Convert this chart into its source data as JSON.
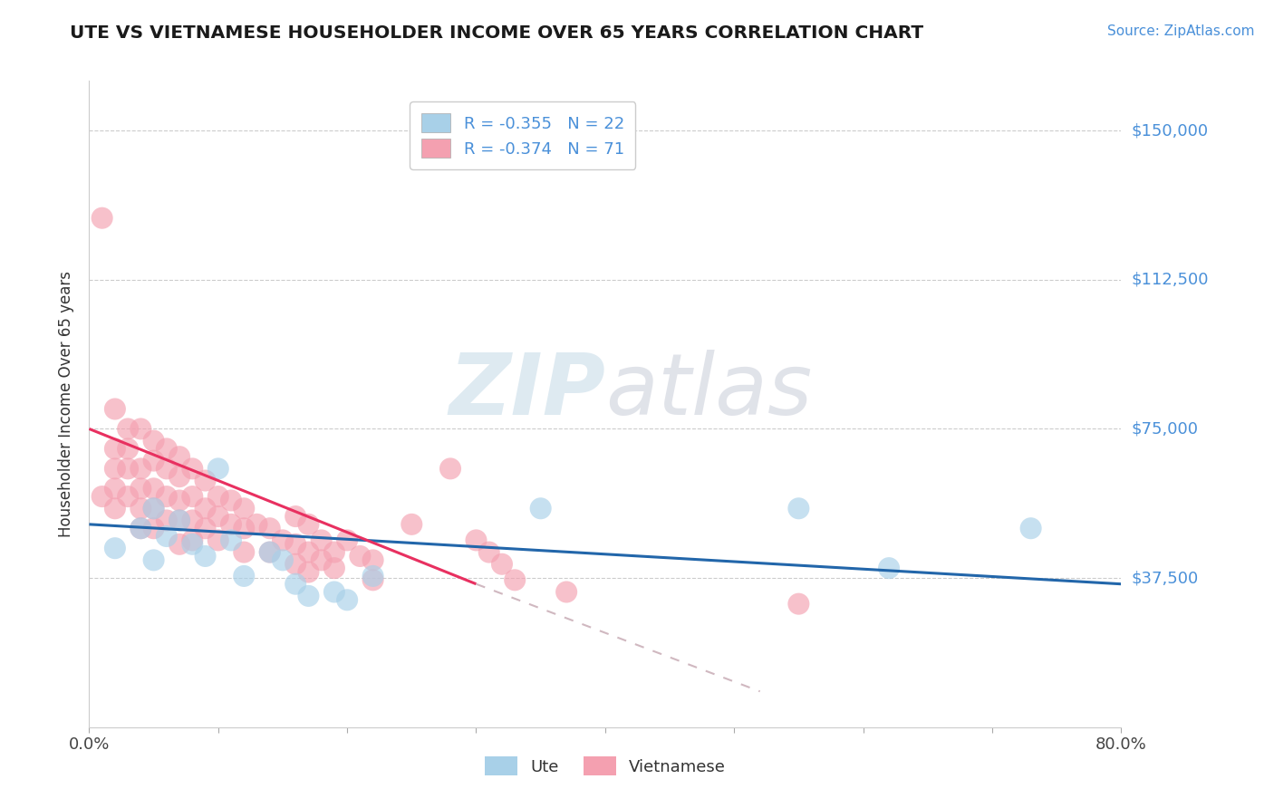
{
  "title": "UTE VS VIETNAMESE HOUSEHOLDER INCOME OVER 65 YEARS CORRELATION CHART",
  "source": "Source: ZipAtlas.com",
  "xlabel": "",
  "ylabel": "Householder Income Over 65 years",
  "legend_label_ute": "Ute",
  "legend_label_viet": "Vietnamese",
  "R_ute": -0.355,
  "N_ute": 22,
  "R_viet": -0.374,
  "N_viet": 71,
  "xlim": [
    0.0,
    0.8
  ],
  "ylim": [
    0,
    162500
  ],
  "yticks": [
    0,
    37500,
    75000,
    112500,
    150000
  ],
  "ytick_labels": [
    "",
    "$37,500",
    "$75,000",
    "$112,500",
    "$150,000"
  ],
  "xticks": [
    0.0,
    0.1,
    0.2,
    0.3,
    0.4,
    0.5,
    0.6,
    0.7,
    0.8
  ],
  "xtick_labels": [
    "0.0%",
    "",
    "",
    "",
    "",
    "",
    "",
    "",
    "80.0%"
  ],
  "color_ute": "#a8d0e8",
  "color_viet": "#f4a0b0",
  "color_ute_line": "#2266aa",
  "color_viet_line": "#e83060",
  "color_viet_line_ext": "#d0b8c0",
  "watermark_zip": "ZIP",
  "watermark_atlas": "atlas",
  "watermark_color_zip": "#c5d8e8",
  "watermark_color_atlas": "#c5c5d8",
  "ute_line_x0": 0.0,
  "ute_line_x1": 0.8,
  "ute_line_y0": 51000,
  "ute_line_y1": 36000,
  "viet_line_solid_x0": 0.0,
  "viet_line_solid_x1": 0.3,
  "viet_line_solid_y0": 75000,
  "viet_line_solid_y1": 36000,
  "viet_line_dash_x0": 0.3,
  "viet_line_dash_x1": 0.52,
  "viet_line_dash_y0": 36000,
  "viet_line_dash_y1": 9000,
  "ute_x": [
    0.02,
    0.04,
    0.05,
    0.05,
    0.06,
    0.07,
    0.08,
    0.09,
    0.1,
    0.11,
    0.12,
    0.14,
    0.15,
    0.16,
    0.17,
    0.19,
    0.2,
    0.22,
    0.35,
    0.55,
    0.62,
    0.73
  ],
  "ute_y": [
    45000,
    50000,
    42000,
    55000,
    48000,
    52000,
    46000,
    43000,
    65000,
    47000,
    38000,
    44000,
    42000,
    36000,
    33000,
    34000,
    32000,
    38000,
    55000,
    55000,
    40000,
    50000
  ],
  "viet_x": [
    0.01,
    0.01,
    0.02,
    0.02,
    0.02,
    0.02,
    0.02,
    0.03,
    0.03,
    0.03,
    0.03,
    0.04,
    0.04,
    0.04,
    0.04,
    0.04,
    0.05,
    0.05,
    0.05,
    0.05,
    0.05,
    0.06,
    0.06,
    0.06,
    0.06,
    0.07,
    0.07,
    0.07,
    0.07,
    0.07,
    0.08,
    0.08,
    0.08,
    0.08,
    0.09,
    0.09,
    0.09,
    0.1,
    0.1,
    0.1,
    0.11,
    0.11,
    0.12,
    0.12,
    0.12,
    0.13,
    0.14,
    0.14,
    0.15,
    0.16,
    0.16,
    0.16,
    0.17,
    0.17,
    0.17,
    0.18,
    0.18,
    0.19,
    0.19,
    0.2,
    0.21,
    0.22,
    0.22,
    0.25,
    0.28,
    0.3,
    0.31,
    0.32,
    0.33,
    0.37,
    0.55
  ],
  "viet_y": [
    128000,
    58000,
    80000,
    70000,
    65000,
    60000,
    55000,
    75000,
    70000,
    65000,
    58000,
    75000,
    65000,
    60000,
    55000,
    50000,
    72000,
    67000,
    60000,
    55000,
    50000,
    70000,
    65000,
    58000,
    52000,
    68000,
    63000,
    57000,
    52000,
    46000,
    65000,
    58000,
    52000,
    47000,
    62000,
    55000,
    50000,
    58000,
    53000,
    47000,
    57000,
    51000,
    55000,
    50000,
    44000,
    51000,
    50000,
    44000,
    47000,
    53000,
    46000,
    41000,
    51000,
    44000,
    39000,
    47000,
    42000,
    44000,
    40000,
    47000,
    43000,
    42000,
    37000,
    51000,
    65000,
    47000,
    44000,
    41000,
    37000,
    34000,
    31000
  ]
}
